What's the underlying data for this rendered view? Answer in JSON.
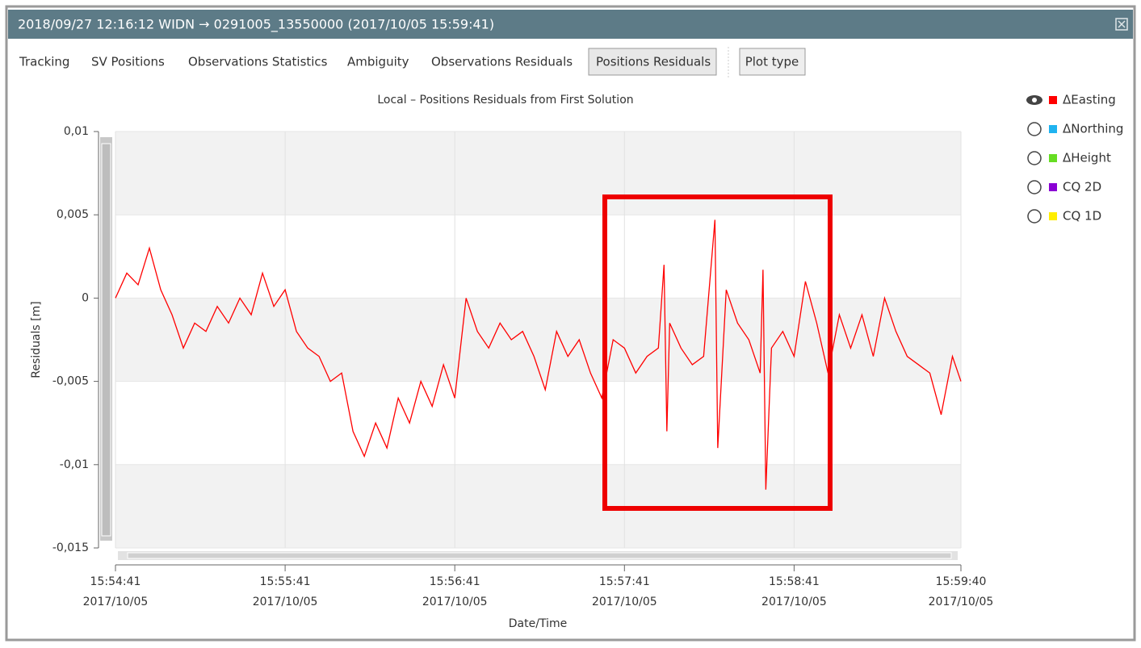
{
  "window": {
    "title": "2018/09/27 12:16:12 WIDN → 0291005_13550000 (2017/10/05 15:59:41)"
  },
  "tabs": [
    {
      "label": "Tracking",
      "selected": false
    },
    {
      "label": "SV Positions",
      "selected": false
    },
    {
      "label": "Observations Statistics",
      "selected": false
    },
    {
      "label": "Ambiguity",
      "selected": false
    },
    {
      "label": "Observations Residuals",
      "selected": false
    },
    {
      "label": "Positions Residuals",
      "selected": true
    }
  ],
  "plot_type_button": "Plot type",
  "chart_data": {
    "type": "line",
    "title": "Local – Positions Residuals from First Solution",
    "x_label": "Date/Time",
    "y_label": "Residuals [m]",
    "x": [
      "15:54:41",
      "15:54:45",
      "15:54:49",
      "15:54:53",
      "15:54:57",
      "15:55:01",
      "15:55:05",
      "15:55:09",
      "15:55:13",
      "15:55:17",
      "15:55:21",
      "15:55:25",
      "15:55:29",
      "15:55:33",
      "15:55:37",
      "15:55:41",
      "15:55:45",
      "15:55:49",
      "15:55:53",
      "15:55:57",
      "15:56:01",
      "15:56:05",
      "15:56:09",
      "15:56:13",
      "15:56:17",
      "15:56:21",
      "15:56:25",
      "15:56:29",
      "15:56:33",
      "15:56:37",
      "15:56:41",
      "15:56:45",
      "15:56:49",
      "15:56:53",
      "15:56:57",
      "15:57:01",
      "15:57:05",
      "15:57:09",
      "15:57:13",
      "15:57:17",
      "15:57:21",
      "15:57:25",
      "15:57:29",
      "15:57:33",
      "15:57:37",
      "15:57:41",
      "15:57:45",
      "15:57:49",
      "15:57:53",
      "15:57:55",
      "15:57:56",
      "15:57:57",
      "15:58:01",
      "15:58:05",
      "15:58:09",
      "15:58:13",
      "15:58:14",
      "15:58:17",
      "15:58:21",
      "15:58:25",
      "15:58:29",
      "15:58:30",
      "15:58:31",
      "15:58:33",
      "15:58:37",
      "15:58:41",
      "15:58:45",
      "15:58:49",
      "15:58:53",
      "15:58:57",
      "15:59:01",
      "15:59:05",
      "15:59:09",
      "15:59:13",
      "15:59:17",
      "15:59:21",
      "15:59:25",
      "15:59:29",
      "15:59:33",
      "15:59:37",
      "15:59:40"
    ],
    "series": [
      {
        "name": "ΔEasting",
        "color": "#ff0000",
        "visible": true,
        "values": [
          0,
          0.0015,
          0.0008,
          0.003,
          0.0005,
          -0.001,
          -0.003,
          -0.0015,
          -0.002,
          -0.0005,
          -0.0015,
          0,
          -0.001,
          0.0015,
          -0.0005,
          0.0005,
          -0.002,
          -0.003,
          -0.0035,
          -0.005,
          -0.0045,
          -0.008,
          -0.0095,
          -0.0075,
          -0.009,
          -0.006,
          -0.0075,
          -0.005,
          -0.0065,
          -0.004,
          -0.006,
          0,
          -0.002,
          -0.003,
          -0.0015,
          -0.0025,
          -0.002,
          -0.0035,
          -0.0055,
          -0.002,
          -0.0035,
          -0.0025,
          -0.0045,
          -0.006,
          -0.0025,
          -0.003,
          -0.0045,
          -0.0035,
          -0.003,
          0.002,
          -0.008,
          -0.0015,
          -0.003,
          -0.004,
          -0.0035,
          0.0047,
          -0.009,
          0.0005,
          -0.0015,
          -0.0025,
          -0.0045,
          0.0017,
          -0.0115,
          -0.003,
          -0.002,
          -0.0035,
          0.001,
          -0.0015,
          -0.0045,
          -0.001,
          -0.003,
          -0.001,
          -0.0035,
          0,
          -0.002,
          -0.0035,
          -0.004,
          -0.0045,
          -0.007,
          -0.0035,
          -0.005
        ]
      },
      {
        "name": "ΔNorthing",
        "color": "#1fb3f0",
        "visible": false
      },
      {
        "name": "ΔHeight",
        "color": "#66dd22",
        "visible": false
      },
      {
        "name": "CQ 2D",
        "color": "#8a00d4",
        "visible": false
      },
      {
        "name": "CQ 1D",
        "color": "#ffee00",
        "visible": false
      }
    ],
    "xlim": [
      "15:54:41",
      "15:59:40"
    ],
    "xticks": [
      {
        "value": "15:54:41",
        "label": [
          "15:54:41",
          "2017/10/05"
        ]
      },
      {
        "value": "15:55:41",
        "label": [
          "15:55:41",
          "2017/10/05"
        ]
      },
      {
        "value": "15:56:41",
        "label": [
          "15:56:41",
          "2017/10/05"
        ]
      },
      {
        "value": "15:57:41",
        "label": [
          "15:57:41",
          "2017/10/05"
        ]
      },
      {
        "value": "15:58:41",
        "label": [
          "15:58:41",
          "2017/10/05"
        ]
      },
      {
        "value": "15:59:40",
        "label": [
          "15:59:40",
          "2017/10/05"
        ]
      }
    ],
    "ylim": [
      -0.015,
      0.01
    ],
    "yticks": [
      {
        "value": 0.01,
        "label": "0,01"
      },
      {
        "value": 0.005,
        "label": "0,005"
      },
      0,
      {
        "value": -0.005,
        "label": "-0,005"
      },
      {
        "value": -0.01,
        "label": "-0,01"
      },
      {
        "value": -0.015,
        "label": "-0,015"
      }
    ],
    "grid": true
  }
}
